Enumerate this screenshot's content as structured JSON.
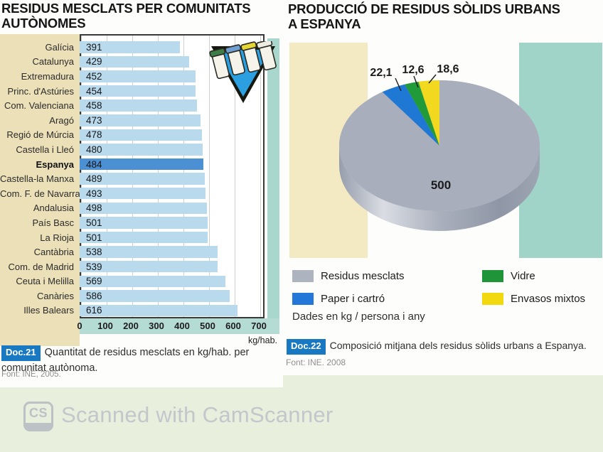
{
  "left_chart": {
    "title_line1": "RESIDUS MESCLATS PER COMUNITATS",
    "title_line2": "AUTÒNOMES",
    "axis_unit": "kg/hab.",
    "doc_badge": "Doc.21",
    "caption": "Quantitat de residus mesclats en kg/hab. per comunitat autònoma.",
    "source": "Font: INE, 2005."
  },
  "right_chart": {
    "title_line1": "PRODUCCIÓ DE RESIDUS SÒLIDS URBANS",
    "title_line2": "A ESPANYA",
    "note": "Dades en kg / persona i any",
    "doc_badge": "Doc.22",
    "caption": "Composició mitjana dels residus sòlids urbans a Espanya.",
    "source": "Font: INE. 2008"
  },
  "watermark": {
    "icon_text": "CS",
    "text": "Scanned with CamScanner"
  },
  "chart_data": [
    {
      "type": "bar",
      "orientation": "horizontal",
      "title": "Residus mesclats per comunitats autònomes",
      "xlabel": "kg/hab.",
      "xlim": [
        0,
        700
      ],
      "xticks": [
        0,
        100,
        200,
        300,
        400,
        500,
        600,
        700
      ],
      "grid": true,
      "bar_color": "#b9d9ec",
      "highlight_color": "#4a90d2",
      "rows": [
        {
          "label": "Galícia",
          "value": 391
        },
        {
          "label": "Catalunya",
          "value": 429
        },
        {
          "label": "Extremadura",
          "value": 452
        },
        {
          "label": "Princ. d'Astúries",
          "value": 454
        },
        {
          "label": "Com. Valenciana",
          "value": 458
        },
        {
          "label": "Aragó",
          "value": 473
        },
        {
          "label": "Regió de Múrcia",
          "value": 478
        },
        {
          "label": "Castella i Lleó",
          "value": 480
        },
        {
          "label": "Espanya",
          "value": 484,
          "highlight": true
        },
        {
          "label": "Castella-la Manxa",
          "value": 489
        },
        {
          "label": "Com. F. de Navarra",
          "value": 493
        },
        {
          "label": "Andalusia",
          "value": 498
        },
        {
          "label": "País Basc",
          "value": 501
        },
        {
          "label": "La Rioja",
          "value": 501
        },
        {
          "label": "Cantàbria",
          "value": 538
        },
        {
          "label": "Com. de Madrid",
          "value": 539
        },
        {
          "label": "Ceuta i Melilla",
          "value": 569
        },
        {
          "label": "Canàries",
          "value": 586
        },
        {
          "label": "Illes Balears",
          "value": 616
        }
      ],
      "source": "INE, 2005"
    },
    {
      "type": "pie",
      "style": "3d",
      "title": "Producció de residus sòlids urbans a Espanya",
      "unit": "kg / persona i any",
      "slices": [
        {
          "label": "Residus mesclats",
          "value": 500,
          "display": "500",
          "color": "#a9aebc",
          "label_placement": "inside"
        },
        {
          "label": "Paper i cartró",
          "value": 22.1,
          "display": "22,1",
          "color": "#1e78d4",
          "label_placement": "outside"
        },
        {
          "label": "Vidre",
          "value": 12.6,
          "display": "12,6",
          "color": "#219a3a",
          "label_placement": "outside"
        },
        {
          "label": "Envasos mixtos",
          "value": 18.6,
          "display": "18,6",
          "color": "#f2d81e",
          "label_placement": "outside"
        }
      ],
      "legend": [
        {
          "label": "Residus mesclats",
          "color": "#adb3bf"
        },
        {
          "label": "Vidre",
          "color": "#1f9438"
        },
        {
          "label": "Paper i cartró",
          "color": "#2277d8"
        },
        {
          "label": "Envasos mixtos",
          "color": "#f2d80e"
        }
      ],
      "legend_position": "bottom",
      "source": "INE, 2008"
    }
  ]
}
